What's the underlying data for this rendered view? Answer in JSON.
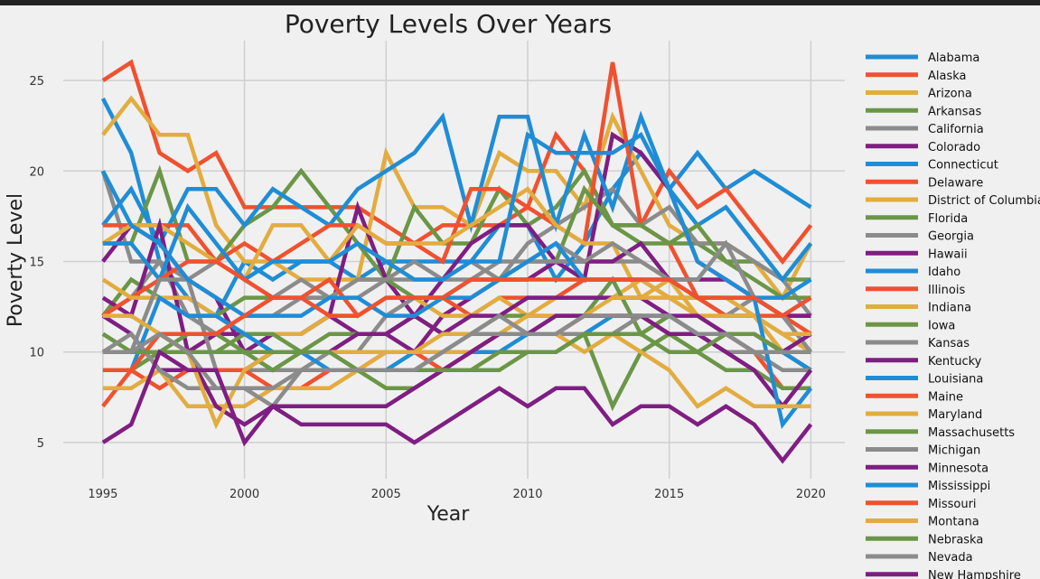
{
  "chart_data": {
    "type": "line",
    "title": "Poverty Levels Over Years",
    "xlabel": "Year",
    "ylabel": "Poverty Level",
    "x": [
      1995,
      1996,
      1997,
      1998,
      1999,
      2000,
      2001,
      2002,
      2003,
      2004,
      2005,
      2006,
      2007,
      2008,
      2009,
      2010,
      2011,
      2012,
      2013,
      2014,
      2015,
      2016,
      2017,
      2018,
      2019,
      2020
    ],
    "xticks": [
      1995,
      2000,
      2005,
      2010,
      2015,
      2020
    ],
    "yticks": [
      5,
      10,
      15,
      20,
      25
    ],
    "xlim": [
      1993.6,
      2021.2
    ],
    "ylim": [
      3.0,
      27.2
    ],
    "grid": true,
    "legend_position": "outside-right",
    "series": [
      {
        "name": "Alabama",
        "color": "#1f8dd6",
        "values": [
          24,
          21,
          15,
          13,
          12,
          15,
          14,
          15,
          15,
          14,
          15,
          15,
          15,
          15,
          17,
          17,
          14,
          16,
          19,
          21,
          19,
          21,
          19,
          20,
          19,
          18
        ]
      },
      {
        "name": "Alaska",
        "color": "#f0512f",
        "values": [
          25,
          26,
          21,
          20,
          21,
          18,
          18,
          18,
          18,
          18,
          17,
          16,
          17,
          17,
          17,
          18,
          22,
          20,
          17,
          17,
          20,
          18,
          19,
          17,
          15,
          17
        ]
      },
      {
        "name": "Arizona",
        "color": "#e2ac3f",
        "values": [
          22,
          24,
          22,
          22,
          17,
          15,
          15,
          14,
          14,
          14,
          21,
          18,
          18,
          17,
          21,
          20,
          20,
          18,
          23,
          20,
          17,
          16,
          16,
          15,
          13,
          16
        ]
      },
      {
        "name": "Arkansas",
        "color": "#6b9647",
        "values": [
          16,
          16,
          20,
          15,
          15,
          17,
          18,
          20,
          18,
          16,
          14,
          18,
          16,
          16,
          19,
          17,
          18,
          20,
          17,
          16,
          16,
          16,
          15,
          15,
          14,
          14
        ]
      },
      {
        "name": "California",
        "color": "#8b8b8b",
        "values": [
          20,
          15,
          15,
          14,
          15,
          14,
          13,
          14,
          13,
          13,
          14,
          14,
          14,
          15,
          14,
          16,
          17,
          18,
          19,
          17,
          18,
          16,
          16,
          15,
          14,
          12
        ]
      },
      {
        "name": "Colorado",
        "color": "#7f1e82",
        "values": [
          15,
          17,
          16,
          14,
          13,
          10,
          11,
          11,
          12,
          18,
          14,
          12,
          14,
          16,
          17,
          17,
          15,
          14,
          22,
          21,
          19,
          15,
          14,
          13,
          12,
          12
        ]
      },
      {
        "name": "Connecticut",
        "color": "#1f8dd6",
        "values": [
          17,
          19,
          16,
          19,
          19,
          17,
          19,
          18,
          17,
          19,
          20,
          21,
          23,
          17,
          23,
          23,
          17,
          22,
          18,
          23,
          19,
          17,
          18,
          16,
          14,
          16
        ]
      },
      {
        "name": "Delaware",
        "color": "#f0512f",
        "values": [
          17,
          17,
          17,
          17,
          15,
          16,
          15,
          16,
          17,
          17,
          16,
          16,
          15,
          19,
          19,
          18,
          17,
          16,
          26,
          17,
          16,
          13,
          12,
          12,
          10,
          9
        ]
      },
      {
        "name": "District of Columbia",
        "color": "#e2ac3f",
        "values": [
          16,
          17,
          17,
          16,
          15,
          14,
          17,
          17,
          15,
          17,
          16,
          16,
          16,
          17,
          18,
          19,
          17,
          16,
          16,
          13,
          14,
          12,
          12,
          12,
          10,
          11
        ]
      },
      {
        "name": "Florida",
        "color": "#6b9647",
        "values": [
          12,
          14,
          13,
          12,
          12,
          13,
          13,
          13,
          13,
          14,
          14,
          13,
          13,
          14,
          14,
          15,
          15,
          19,
          17,
          17,
          16,
          17,
          15,
          14,
          13,
          13
        ]
      },
      {
        "name": "Georgia",
        "color": "#8b8b8b",
        "values": [
          12,
          13,
          15,
          12,
          11,
          12,
          12,
          13,
          13,
          14,
          14,
          15,
          14,
          14,
          15,
          15,
          16,
          15,
          15,
          15,
          14,
          13,
          12,
          13,
          12,
          13
        ]
      },
      {
        "name": "Hawaii",
        "color": "#7f1e82",
        "values": [
          13,
          12,
          17,
          10,
          11,
          11,
          11,
          11,
          12,
          11,
          11,
          10,
          12,
          13,
          14,
          14,
          15,
          15,
          15,
          16,
          14,
          14,
          14,
          13,
          12,
          12
        ]
      },
      {
        "name": "Idaho",
        "color": "#1f8dd6",
        "values": [
          16,
          16,
          14,
          18,
          16,
          14,
          15,
          15,
          15,
          16,
          15,
          14,
          14,
          15,
          15,
          22,
          21,
          21,
          21,
          22,
          19,
          15,
          14,
          13,
          13,
          14
        ]
      },
      {
        "name": "Illinois",
        "color": "#f0512f",
        "values": [
          12,
          13,
          14,
          15,
          15,
          14,
          13,
          13,
          14,
          12,
          13,
          13,
          13,
          12,
          13,
          13,
          13,
          14,
          14,
          14,
          13,
          13,
          12,
          12,
          12,
          11
        ]
      },
      {
        "name": "Indiana",
        "color": "#e2ac3f",
        "values": [
          14,
          13,
          13,
          13,
          12,
          11,
          11,
          11,
          12,
          12,
          13,
          13,
          12,
          12,
          13,
          12,
          13,
          13,
          13,
          14,
          13,
          12,
          12,
          12,
          11,
          10
        ]
      },
      {
        "name": "Iowa",
        "color": "#6b9647",
        "values": [
          11,
          10,
          11,
          10,
          10,
          11,
          11,
          10,
          11,
          11,
          11,
          12,
          11,
          11,
          12,
          12,
          12,
          12,
          14,
          11,
          12,
          11,
          11,
          11,
          10,
          9
        ]
      },
      {
        "name": "Kansas",
        "color": "#8b8b8b",
        "values": [
          10,
          10,
          14,
          14,
          9,
          9,
          9,
          9,
          10,
          10,
          12,
          13,
          13,
          14,
          14,
          15,
          15,
          15,
          16,
          15,
          14,
          14,
          16,
          13,
          12,
          10
        ]
      },
      {
        "name": "Kentucky",
        "color": "#7f1e82",
        "values": [
          12,
          11,
          9,
          9,
          9,
          9,
          10,
          10,
          10,
          11,
          11,
          12,
          11,
          12,
          12,
          13,
          13,
          13,
          13,
          13,
          12,
          12,
          11,
          11,
          10,
          11
        ]
      },
      {
        "name": "Louisiana",
        "color": "#1f8dd6",
        "values": [
          9,
          9,
          13,
          12,
          12,
          11,
          10,
          10,
          9,
          9,
          9,
          10,
          10,
          10,
          10,
          11,
          11,
          11,
          12,
          12,
          12,
          11,
          11,
          10,
          10,
          9
        ]
      },
      {
        "name": "Maine",
        "color": "#f0512f",
        "values": [
          7,
          9,
          8,
          9,
          9,
          9,
          8,
          8,
          9,
          9,
          10,
          10,
          9,
          10,
          11,
          11,
          11,
          12,
          12,
          12,
          11,
          11,
          11,
          10,
          8,
          8
        ]
      },
      {
        "name": "Maryland",
        "color": "#e2ac3f",
        "values": [
          8,
          8,
          9,
          7,
          7,
          7,
          8,
          8,
          8,
          9,
          10,
          10,
          10,
          10,
          11,
          12,
          12,
          12,
          13,
          13,
          13,
          13,
          13,
          12,
          11,
          11
        ]
      },
      {
        "name": "Massachusetts",
        "color": "#6b9647",
        "values": [
          9,
          9,
          10,
          11,
          11,
          10,
          9,
          10,
          10,
          9,
          8,
          8,
          9,
          9,
          9,
          10,
          10,
          11,
          7,
          10,
          11,
          10,
          9,
          9,
          8,
          8
        ]
      },
      {
        "name": "Michigan",
        "color": "#8b8b8b",
        "values": [
          10,
          11,
          9,
          8,
          8,
          8,
          7,
          9,
          9,
          9,
          9,
          9,
          10,
          11,
          12,
          11,
          11,
          11,
          11,
          12,
          12,
          11,
          10,
          10,
          9,
          9
        ]
      },
      {
        "name": "Minnesota",
        "color": "#7f1e82",
        "values": [
          10,
          10,
          10,
          10,
          7,
          6,
          7,
          7,
          7,
          7,
          7,
          8,
          9,
          10,
          11,
          11,
          12,
          12,
          12,
          12,
          11,
          11,
          10,
          9,
          7,
          9
        ]
      },
      {
        "name": "Mississippi",
        "color": "#1f8dd6",
        "values": [
          20,
          17,
          16,
          14,
          13,
          12,
          12,
          12,
          13,
          13,
          12,
          12,
          13,
          13,
          14,
          15,
          16,
          14,
          14,
          14,
          14,
          13,
          13,
          13,
          6,
          8
        ]
      },
      {
        "name": "Missouri",
        "color": "#f0512f",
        "values": [
          9,
          9,
          11,
          11,
          11,
          12,
          13,
          13,
          12,
          12,
          13,
          13,
          13,
          14,
          14,
          14,
          14,
          14,
          14,
          14,
          14,
          13,
          13,
          13,
          12,
          13
        ]
      },
      {
        "name": "Montana",
        "color": "#e2ac3f",
        "values": [
          12,
          12,
          11,
          10,
          6,
          9,
          10,
          10,
          10,
          10,
          10,
          10,
          11,
          11,
          11,
          11,
          11,
          10,
          11,
          10,
          9,
          7,
          8,
          7,
          7,
          7
        ]
      },
      {
        "name": "Nebraska",
        "color": "#6b9647",
        "values": [
          10,
          10,
          10,
          10,
          10,
          10,
          10,
          10,
          10,
          9,
          9,
          9,
          9,
          9,
          10,
          10,
          10,
          11,
          11,
          11,
          10,
          10,
          11,
          11,
          10,
          10
        ]
      },
      {
        "name": "Nevada",
        "color": "#8b8b8b",
        "values": [
          10,
          10,
          11,
          10,
          8,
          8,
          8,
          9,
          9,
          9,
          9,
          9,
          10,
          11,
          11,
          11,
          11,
          12,
          12,
          12,
          12,
          11,
          11,
          10,
          10,
          10
        ]
      },
      {
        "name": "New Hampshire",
        "color": "#7f1e82",
        "values": [
          5,
          6,
          10,
          9,
          9,
          5,
          7,
          6,
          6,
          6,
          6,
          5,
          6,
          7,
          8,
          7,
          8,
          8,
          6,
          7,
          7,
          6,
          7,
          6,
          4,
          6
        ]
      }
    ]
  }
}
